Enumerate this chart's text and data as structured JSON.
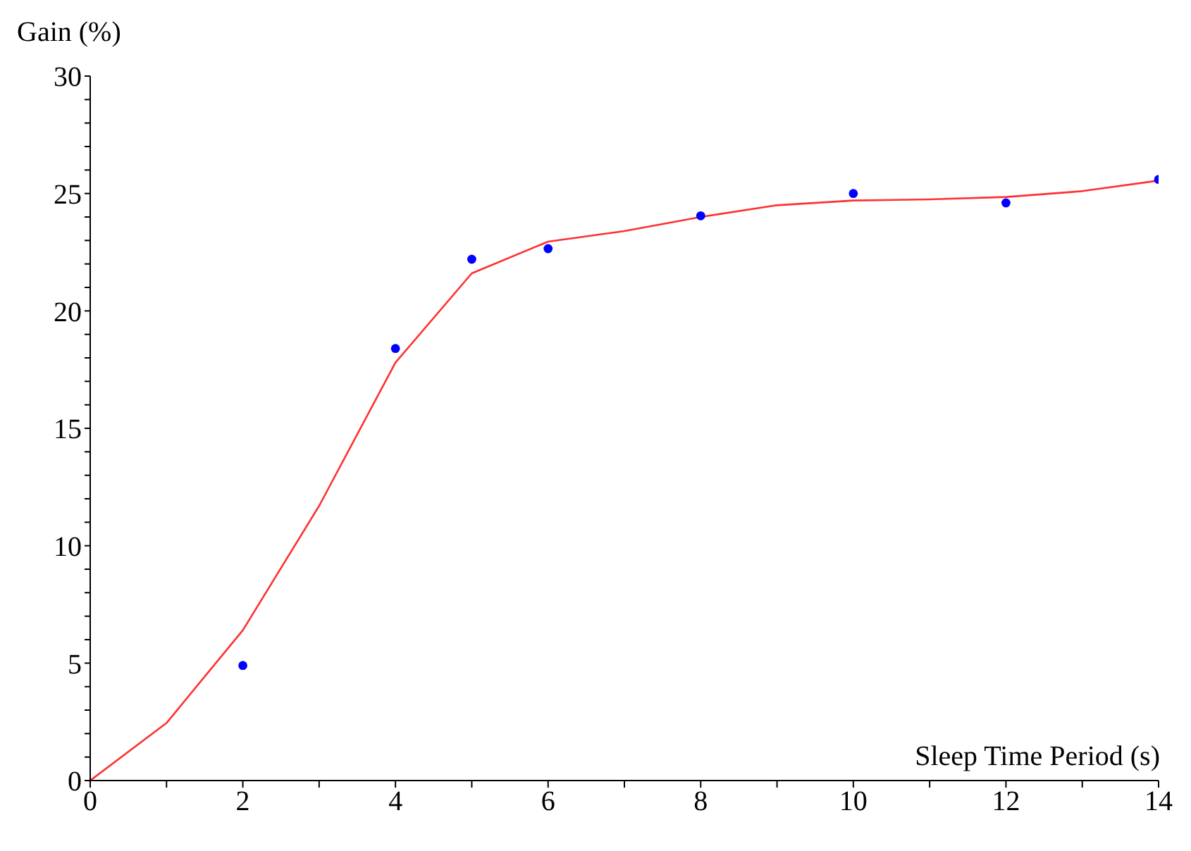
{
  "chart_data": {
    "type": "line",
    "xlabel": "Sleep Time Period (s)",
    "ylabel": "Gain (%)",
    "xlim": [
      0,
      14
    ],
    "ylim": [
      0,
      30
    ],
    "xticks": [
      0,
      {
        "value": 1,
        "label": null
      },
      2,
      {
        "value": 3,
        "label": null
      },
      4,
      {
        "value": 5,
        "label": null
      },
      6,
      {
        "value": 7,
        "label": null
      },
      8,
      {
        "value": 9,
        "label": null
      },
      10,
      {
        "value": 11,
        "label": null
      },
      12,
      {
        "value": 13,
        "label": null
      },
      14
    ],
    "yticks": [
      0,
      {
        "value": 1,
        "label": null
      },
      {
        "value": 2,
        "label": null
      },
      {
        "value": 3,
        "label": null
      },
      {
        "value": 4,
        "label": null
      },
      5,
      {
        "value": 6,
        "label": null
      },
      {
        "value": 7,
        "label": null
      },
      {
        "value": 8,
        "label": null
      },
      {
        "value": 9,
        "label": null
      },
      10,
      {
        "value": 11,
        "label": null
      },
      {
        "value": 12,
        "label": null
      },
      {
        "value": 13,
        "label": null
      },
      {
        "value": 14,
        "label": null
      },
      15,
      {
        "value": 16,
        "label": null
      },
      {
        "value": 17,
        "label": null
      },
      {
        "value": 18,
        "label": null
      },
      {
        "value": 19,
        "label": null
      },
      20,
      {
        "value": 21,
        "label": null
      },
      {
        "value": 22,
        "label": null
      },
      {
        "value": 23,
        "label": null
      },
      {
        "value": 24,
        "label": null
      },
      25,
      {
        "value": 26,
        "label": null
      },
      {
        "value": 27,
        "label": null
      },
      {
        "value": 28,
        "label": null
      },
      {
        "value": 29,
        "label": null
      },
      30
    ],
    "series": [
      {
        "color": "#ff3030",
        "marker": "none",
        "x": [
          0,
          1,
          2,
          3,
          4,
          5,
          6,
          7,
          8,
          9,
          10,
          11,
          12,
          13,
          14
        ],
        "values": [
          0,
          2.45,
          6.4,
          11.7,
          17.8,
          21.6,
          22.95,
          23.4,
          24.0,
          24.5,
          24.7,
          24.75,
          24.85,
          25.1,
          25.55
        ]
      },
      {
        "type": "scatter",
        "color": "#0000ff",
        "marker": "circle",
        "x": [
          2,
          4,
          5,
          6,
          8,
          10,
          12,
          14
        ],
        "values": [
          4.9,
          18.4,
          22.2,
          22.65,
          24.05,
          25.0,
          24.6,
          25.6
        ]
      }
    ]
  }
}
